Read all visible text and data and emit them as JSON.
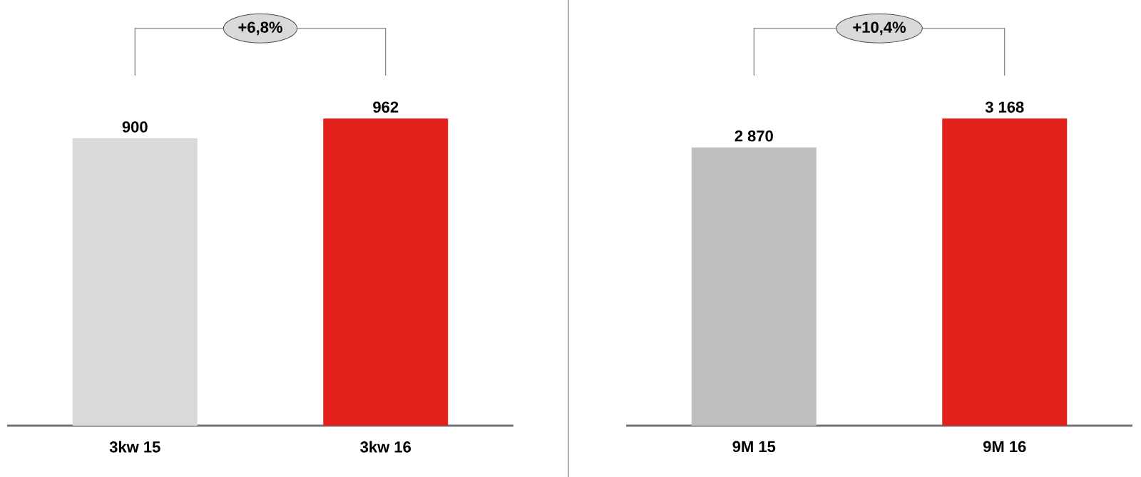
{
  "chart_data": [
    {
      "type": "bar",
      "categories": [
        "3kw 15",
        "3kw 16"
      ],
      "values": [
        900,
        962
      ],
      "colors": [
        "#d9d9d9",
        "#e3211c"
      ],
      "value_labels": [
        "900",
        "962"
      ],
      "annotations": [
        "+6,8%"
      ]
    },
    {
      "type": "bar",
      "categories": [
        "9M 15",
        "9M 16"
      ],
      "values": [
        2870,
        3168
      ],
      "colors": [
        "#bfbfbf",
        "#e3211c"
      ],
      "value_labels": [
        "2 870",
        "3 168"
      ],
      "annotations": [
        "+10,4%"
      ]
    }
  ]
}
